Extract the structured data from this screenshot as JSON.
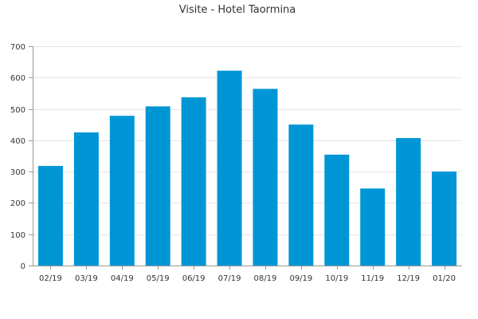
{
  "chart_data": {
    "type": "bar",
    "title": "Visite - Hotel Taormina",
    "xlabel": "",
    "ylabel": "",
    "categories": [
      "02/19",
      "03/19",
      "04/19",
      "05/19",
      "06/19",
      "07/19",
      "08/19",
      "09/19",
      "10/19",
      "11/19",
      "12/19",
      "01/20"
    ],
    "values": [
      318,
      425,
      478,
      508,
      537,
      622,
      564,
      450,
      354,
      246,
      407,
      300
    ],
    "ylim": [
      0,
      700
    ],
    "yticks": [
      0,
      100,
      200,
      300,
      400,
      500,
      600,
      700
    ],
    "grid": true,
    "legend": "none",
    "bar_color": "#0096d6"
  }
}
